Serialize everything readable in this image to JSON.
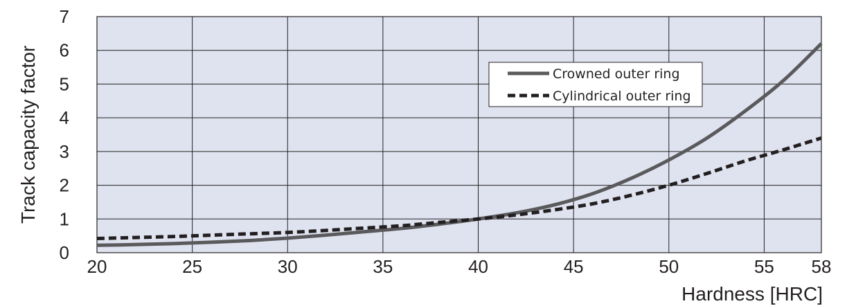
{
  "chart_data": {
    "type": "line",
    "title": "",
    "xlabel": "Hardness [HRC]",
    "ylabel": "Track capacity factor",
    "xlim": [
      20,
      58
    ],
    "ylim": [
      0,
      7
    ],
    "xticks": [
      20,
      25,
      30,
      35,
      40,
      45,
      50,
      55,
      58
    ],
    "yticks": [
      0,
      1,
      2,
      3,
      4,
      5,
      6,
      7
    ],
    "grid": true,
    "legend_position": "upper-right",
    "colors": {
      "plot_background": "#dfe3f0",
      "grid": "#231f20",
      "crowned": "#5a5a5c",
      "cylindrical": "#231f20"
    },
    "series": [
      {
        "name": "Crowned outer ring",
        "style": "solid",
        "x": [
          20,
          22,
          24,
          26,
          28,
          30,
          32,
          34,
          36,
          38,
          40,
          42,
          44,
          46,
          48,
          50,
          52,
          54,
          56,
          58
        ],
        "y": [
          0.22,
          0.24,
          0.27,
          0.31,
          0.36,
          0.43,
          0.52,
          0.62,
          0.72,
          0.85,
          1.0,
          1.18,
          1.42,
          1.75,
          2.2,
          2.75,
          3.4,
          4.2,
          5.1,
          6.2
        ]
      },
      {
        "name": "Cylindrical outer ring",
        "style": "dashed",
        "x": [
          20,
          22,
          24,
          26,
          28,
          30,
          32,
          34,
          36,
          38,
          40,
          42,
          44,
          46,
          48,
          50,
          52,
          54,
          56,
          58
        ],
        "y": [
          0.42,
          0.45,
          0.48,
          0.52,
          0.56,
          0.6,
          0.66,
          0.73,
          0.8,
          0.9,
          1.0,
          1.12,
          1.27,
          1.45,
          1.7,
          2.0,
          2.35,
          2.72,
          3.05,
          3.4
        ]
      }
    ]
  }
}
